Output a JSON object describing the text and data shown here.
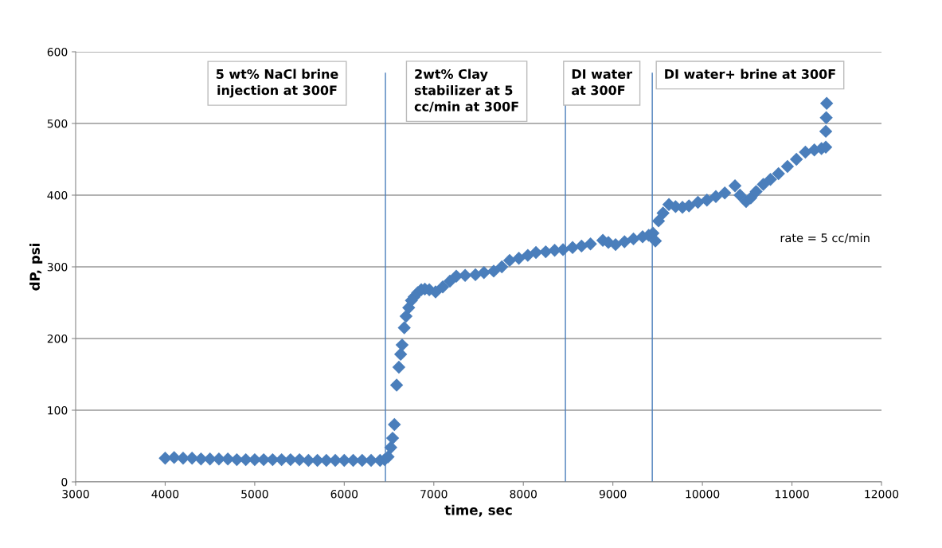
{
  "chart_data": {
    "type": "scatter",
    "xlabel": "time, sec",
    "ylabel": "dP, psi",
    "x": [
      4000,
      4100,
      4200,
      4300,
      4400,
      4500,
      4600,
      4700,
      4800,
      4900,
      5000,
      5100,
      5200,
      5300,
      5400,
      5500,
      5600,
      5700,
      5800,
      5900,
      6000,
      6100,
      6200,
      6300,
      6400,
      6450,
      6490,
      6520,
      6540,
      6560,
      6585,
      6610,
      6630,
      6646,
      6670,
      6690,
      6720,
      6750,
      6780,
      6820,
      6860,
      6900,
      6950,
      7020,
      7100,
      7180,
      7251,
      7350,
      7465,
      7560,
      7669,
      7760,
      7847,
      7950,
      8050,
      8141,
      8250,
      8350,
      8443,
      8550,
      8650,
      8750,
      8888,
      8950,
      9030,
      9130,
      9230,
      9332,
      9400,
      9448,
      9475,
      9510,
      9560,
      9626,
      9700,
      9777,
      9850,
      9950,
      10050,
      10150,
      10250,
      10364,
      10420,
      10488,
      10540,
      10600,
      10680,
      10760,
      10850,
      10950,
      11050,
      11150,
      11250,
      11330,
      11378,
      11378,
      11383,
      11388
    ],
    "values": [
      33,
      34,
      33,
      33,
      32,
      32,
      32,
      32,
      31,
      31,
      31,
      31,
      31,
      31,
      31,
      31,
      30,
      30,
      30,
      30,
      30,
      30,
      30,
      30,
      30,
      31,
      35,
      48,
      61,
      80,
      135,
      160,
      178,
      191,
      215,
      231,
      243,
      253,
      258,
      264,
      268,
      269,
      268,
      265,
      272,
      280,
      287,
      288,
      289,
      292,
      294,
      300,
      309,
      312,
      316,
      320,
      321,
      323,
      324,
      327,
      329,
      332,
      337,
      334,
      331,
      335,
      339,
      342,
      344,
      347,
      336,
      364,
      375,
      387,
      384,
      383,
      385,
      390,
      393,
      398,
      403,
      413,
      400,
      391,
      396,
      405,
      415,
      422,
      430,
      440,
      450,
      460,
      463,
      465,
      467,
      489,
      508,
      528
    ],
    "xlim": [
      3000,
      12000
    ],
    "xticks": [
      3000,
      4000,
      5000,
      6000,
      7000,
      8000,
      9000,
      10000,
      11000,
      12000
    ],
    "ylim": [
      0,
      600
    ],
    "yticks": [
      0,
      100,
      200,
      300,
      400,
      500,
      600
    ],
    "color": "#4a7ebb",
    "marker": "diamond",
    "grid": "y",
    "ref_lines": [
      {
        "axis": "x",
        "value": 6460,
        "color": "#4a7ebb"
      },
      {
        "axis": "x",
        "value": 8470,
        "color": "#4a7ebb"
      },
      {
        "axis": "x",
        "value": 9440,
        "color": "#4a7ebb"
      }
    ],
    "annotations": [
      "5 wt% NaCl brine\ninjection at 300F",
      "2wt% Clay\nstabilizer at 5\ncc/min at 300F",
      "DI water\nat 300F",
      "DI water+ brine at 300F",
      "rate = 5 cc/min"
    ]
  }
}
